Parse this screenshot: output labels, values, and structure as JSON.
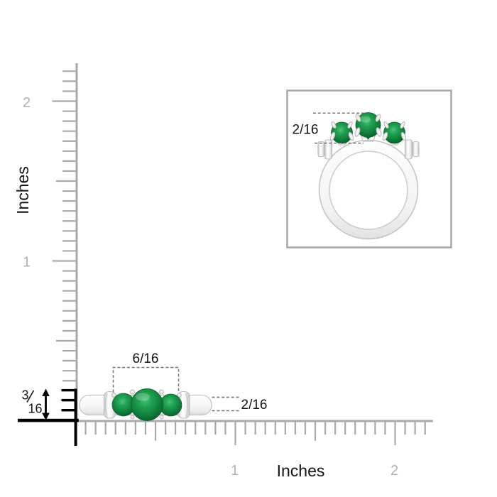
{
  "figure": {
    "description": "three-stone emerald ring shown to scale against inch rulers with a magnified front view inset"
  },
  "rulers": {
    "vertical": {
      "unit_label": "Inches",
      "mark_labels": [
        "1",
        "2"
      ]
    },
    "horizontal": {
      "unit_label": "Inches",
      "mark_labels": [
        "1",
        "2"
      ]
    }
  },
  "annotations": {
    "stones_width_label": "6/16",
    "profile_height_numerator": "3",
    "profile_height_denominator": "16",
    "band_thickness_label": "2/16",
    "inset_head_height_label": "2/16"
  },
  "colors": {
    "emerald_light": "#44bd74",
    "emerald": "#17923f",
    "emerald_dark": "#0a6129",
    "ruler_gray": "#a9a9a9",
    "label_gray": "#b0b0b0",
    "metal_edge": "#c4c4c4",
    "inset_border": "#ababab",
    "annotation_black": "#141414"
  }
}
